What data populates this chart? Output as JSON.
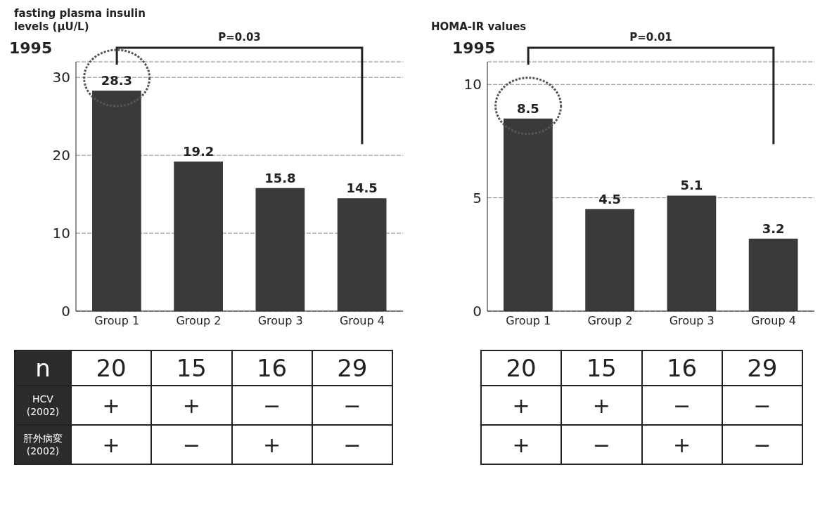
{
  "chart_data": [
    {
      "type": "bar",
      "ylabel": "fasting plasma insulin levels (μU/L)",
      "categories": [
        "Group 1",
        "Group 2",
        "Group 3",
        "Group 4"
      ],
      "values": [
        28.3,
        19.2,
        15.8,
        14.5
      ],
      "color": "#3a3a3a",
      "ylim": [
        0,
        32
      ],
      "yticks": [
        0,
        10,
        20,
        30
      ],
      "grid": "y",
      "data_labels": true,
      "annotations": [
        "P=0.03",
        "1995",
        "n",
        "20",
        "15",
        "16",
        "29",
        "HCV (2002)",
        "+",
        "+",
        "−",
        "−",
        "肝外病変 (2002)",
        "+",
        "−",
        "+",
        "−"
      ]
    },
    {
      "type": "bar",
      "ylabel": "HOMA-IR values",
      "categories": [
        "Group 1",
        "Group 2",
        "Group 3",
        "Group 4"
      ],
      "values": [
        8.5,
        4.5,
        5.1,
        3.2
      ],
      "color": "#3a3a3a",
      "ylim": [
        0,
        11
      ],
      "yticks": [
        0,
        5,
        10
      ],
      "grid": "y",
      "data_labels": true,
      "annotations": [
        "P=0.01",
        "1995",
        "20",
        "15",
        "16",
        "29",
        "+",
        "+",
        "−",
        "−",
        "+",
        "−",
        "+",
        "−"
      ]
    }
  ]
}
